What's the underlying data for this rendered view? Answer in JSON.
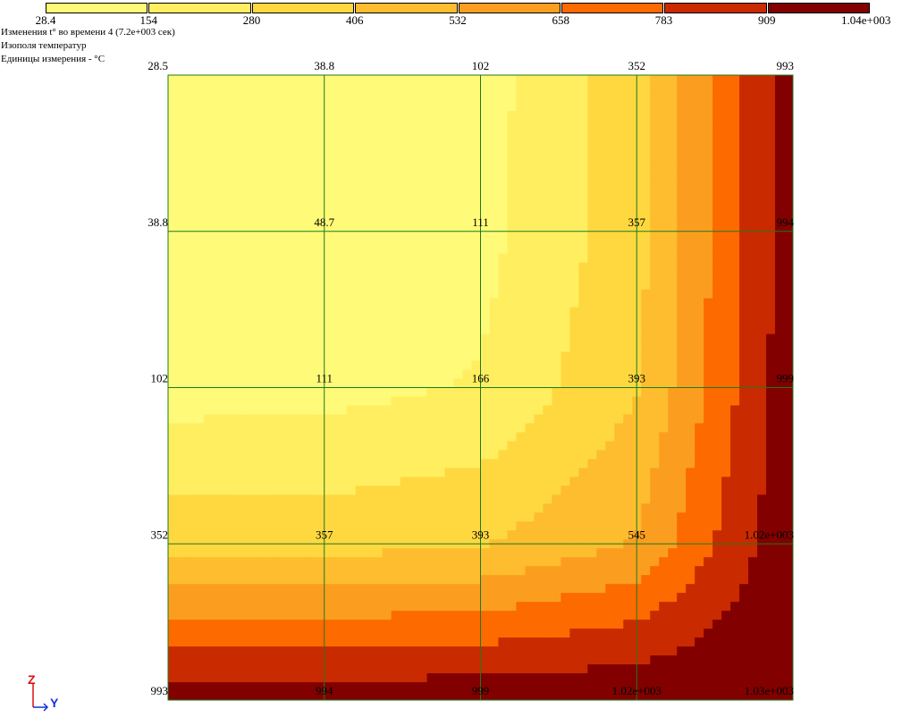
{
  "info": {
    "title": "Изменения t° во времени 4 (7.2e+003 сек)",
    "subtitle": "Изополя температур",
    "units": "Единицы измерения - °C"
  },
  "legend": {
    "colors": [
      "#fffa78",
      "#ffee60",
      "#ffd840",
      "#fdbd2e",
      "#fb9e20",
      "#fc6a00",
      "#ca2a00",
      "#820000"
    ],
    "labels": [
      "28.4",
      "154",
      "280",
      "406",
      "532",
      "658",
      "783",
      "909",
      "1.04e+003"
    ]
  },
  "chart_data": {
    "type": "heatmap",
    "title": "",
    "xlabel": "Y",
    "ylabel": "Z",
    "grid": true,
    "value_range": [
      28.4,
      1040
    ],
    "levels": [
      28.4,
      154,
      280,
      406,
      532,
      658,
      783,
      909,
      1040
    ],
    "node_labels": [
      [
        "28.5",
        "38.8",
        "102",
        "352",
        "993"
      ],
      [
        "38.8",
        "48.7",
        "111",
        "357",
        "994"
      ],
      [
        "102",
        "111",
        "166",
        "393",
        "999"
      ],
      [
        "352",
        "357",
        "393",
        "545",
        "1.02e+003"
      ],
      [
        "993",
        "994",
        "999",
        "1.02e+003",
        "1.03e+003"
      ]
    ],
    "node_values": [
      [
        28.5,
        38.8,
        102,
        352,
        993
      ],
      [
        38.8,
        48.7,
        111,
        357,
        994
      ],
      [
        102,
        111,
        166,
        393,
        999
      ],
      [
        352,
        357,
        393,
        545,
        1020
      ],
      [
        993,
        994,
        999,
        1020,
        1030
      ]
    ]
  },
  "axes": {
    "vertical": "Z",
    "horizontal": "Y"
  }
}
